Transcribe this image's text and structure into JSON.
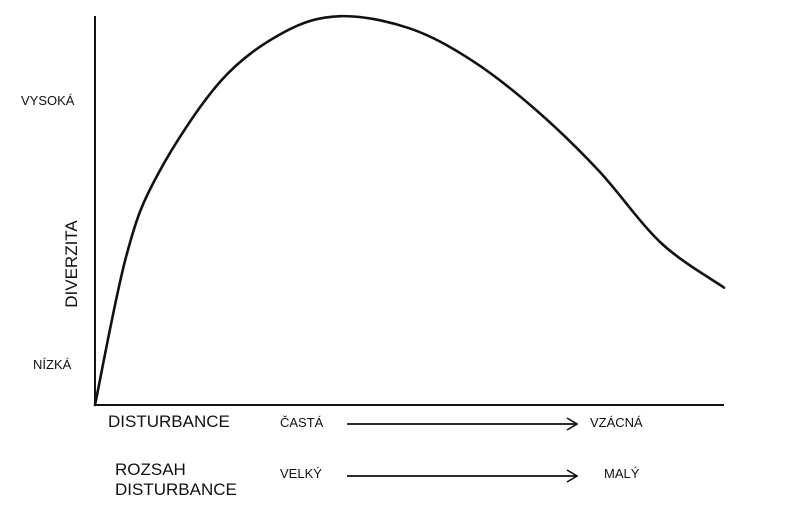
{
  "y_axis": {
    "title": "DIVERZITA",
    "high_label": "VYSOKÁ",
    "low_label": "NÍZKÁ"
  },
  "x_axis": {
    "disturbance_label": "DISTURBANCE",
    "frequency_from": "ČASTÁ",
    "frequency_to": "VZÁCNÁ",
    "scale_label_line1": "ROZSAH",
    "scale_label_line2": "DISTURBANCE",
    "scale_from": "VELKÝ",
    "scale_to": "MALÝ"
  },
  "chart_data": {
    "type": "line",
    "ylabel": "DIVERZITA",
    "xlabel": "DISTURBANCE",
    "series": [
      {
        "x": [
          0,
          0.05,
          0.1,
          0.2,
          0.3,
          0.39,
          0.5,
          0.6,
          0.7,
          0.8,
          0.9,
          1.0
        ],
        "y": [
          0,
          0.37,
          0.57,
          0.8,
          0.92,
          0.96,
          0.93,
          0.85,
          0.73,
          0.58,
          0.4,
          0.29
        ]
      }
    ]
  }
}
